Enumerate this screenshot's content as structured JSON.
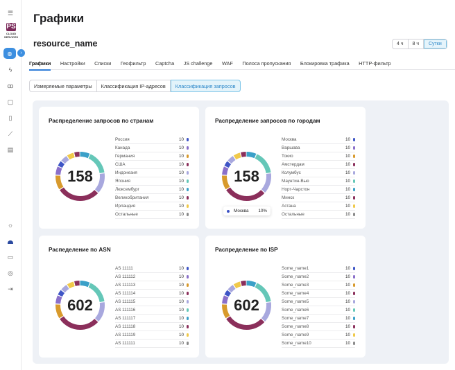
{
  "page": {
    "title": "Графики",
    "resource": "resource_name"
  },
  "periods": [
    "4 ч",
    "8 ч",
    "Сутки"
  ],
  "tabs": [
    "Графики",
    "Настройки",
    "Списки",
    "Геофильтр",
    "Captcha",
    "JS challenge",
    "WAF",
    "Полоса пропускания",
    "Блокировка трафика",
    "HTTP-фильтр"
  ],
  "subtabs": [
    "Измеряемые параметры",
    "Классификация IP-адресов",
    "Классификация запросов"
  ],
  "colors": [
    "#3e55c6",
    "#8a6fc9",
    "#d89a2c",
    "#8b2f5b",
    "#a8a8de",
    "#65c7b8",
    "#3aa0c8",
    "#8b2f5b",
    "#f0c94a",
    "#8a8a8a"
  ],
  "cards": {
    "countries": {
      "title": "Распределение запросов по странам",
      "total": "158",
      "rows": [
        {
          "label": "Россия",
          "value": "10"
        },
        {
          "label": "Канада",
          "value": "10"
        },
        {
          "label": "Германия",
          "value": "10"
        },
        {
          "label": "США",
          "value": "10"
        },
        {
          "label": "Индонезия",
          "value": "10"
        },
        {
          "label": "Япония",
          "value": "10"
        },
        {
          "label": "Люксембург",
          "value": "10"
        },
        {
          "label": "Великобритания",
          "value": "10"
        },
        {
          "label": "Ирландия",
          "value": "10"
        },
        {
          "label": "Остальные",
          "value": "10"
        }
      ]
    },
    "cities": {
      "title": "Распределение запросов по городам",
      "total": "158",
      "tooltip": {
        "label": "Москва",
        "value": "10%"
      },
      "rows": [
        {
          "label": "Москва",
          "value": "10"
        },
        {
          "label": "Варшава",
          "value": "10"
        },
        {
          "label": "Токио",
          "value": "10"
        },
        {
          "label": "Амстердам",
          "value": "10"
        },
        {
          "label": "Колумбус",
          "value": "10"
        },
        {
          "label": "Маунтин-Вью",
          "value": "10"
        },
        {
          "label": "Норт-Чарстон",
          "value": "10"
        },
        {
          "label": "Минск",
          "value": "10"
        },
        {
          "label": "Астана",
          "value": "10"
        },
        {
          "label": "Остальные",
          "value": "10"
        }
      ]
    },
    "asn": {
      "title": "Распеделение по ASN",
      "total": "602",
      "rows": [
        {
          "label": "AS 11111",
          "value": "10"
        },
        {
          "label": "AS 111112",
          "value": "10"
        },
        {
          "label": "AS 111113",
          "value": "10"
        },
        {
          "label": "AS 111114",
          "value": "10"
        },
        {
          "label": "AS 111115",
          "value": "10"
        },
        {
          "label": "AS 111116",
          "value": "10"
        },
        {
          "label": "AS 111117",
          "value": "10"
        },
        {
          "label": "AS 111118",
          "value": "10"
        },
        {
          "label": "AS 111119",
          "value": "10"
        },
        {
          "label": "AS 111111",
          "value": "10"
        }
      ]
    },
    "isp": {
      "title": "Распределение по ISP",
      "total": "602",
      "rows": [
        {
          "label": "Some_name1",
          "value": "10"
        },
        {
          "label": "Some_name2",
          "value": "10"
        },
        {
          "label": "Some_name3",
          "value": "10"
        },
        {
          "label": "Some_name4",
          "value": "10"
        },
        {
          "label": "Some_name5",
          "value": "10"
        },
        {
          "label": "Some_name6",
          "value": "10"
        },
        {
          "label": "Some_name7",
          "value": "10"
        },
        {
          "label": "Some_name8",
          "value": "10"
        },
        {
          "label": "Some_name9",
          "value": "10"
        },
        {
          "label": "Some_name10",
          "value": "10"
        }
      ]
    }
  },
  "donut_segments": [
    {
      "color": "#3aa0c8",
      "value": 7
    },
    {
      "color": "#65c7b8",
      "value": 16
    },
    {
      "color": "#a8a8de",
      "value": 14
    },
    {
      "color": "#8b2f5b",
      "value": 29
    },
    {
      "color": "#d89a2c",
      "value": 10
    },
    {
      "color": "#8a6fc9",
      "value": 6
    },
    {
      "color": "#3e55c6",
      "value": 4
    },
    {
      "color": "#a8a8de",
      "value": 5
    },
    {
      "color": "#f0c94a",
      "value": 5
    },
    {
      "color": "#8b2f5b",
      "value": 4
    }
  ]
}
